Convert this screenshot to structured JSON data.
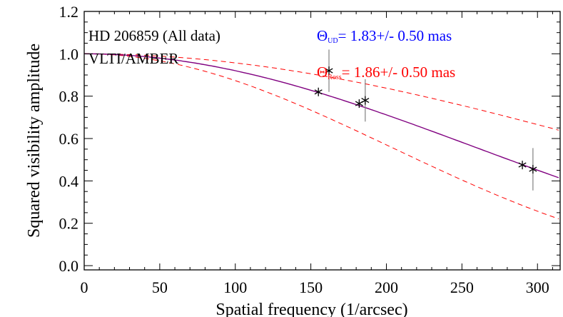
{
  "chart_data": {
    "type": "scatter",
    "title": "",
    "xlabel": "Spatial frequency (1/arcsec)",
    "ylabel": "Squared visibility amplitude",
    "xlim": [
      0,
      315
    ],
    "ylim": [
      -0.02,
      1.2
    ],
    "xticks": [
      0,
      50,
      100,
      150,
      200,
      250,
      300
    ],
    "xtick_labels": [
      "0",
      "50",
      "100",
      "150",
      "200",
      "250",
      "300"
    ],
    "yticks": [
      0.0,
      0.2,
      0.4,
      0.6,
      0.8,
      1.0,
      1.2
    ],
    "ytick_labels": [
      "0.0",
      "0.2",
      "0.4",
      "0.6",
      "0.8",
      "1.0",
      "1.2"
    ],
    "grid": false,
    "annotations": {
      "object": "HD 206859 (All data)",
      "instrument": "VLTI/AMBER",
      "ud_symbol": "Θ",
      "ud_sub": "UD",
      "ud_value": "= 1.83+/- 0.50 mas",
      "ross_symbol": "Θ",
      "ross_sub": "Ross",
      "ross_value": "= 1.86+/- 0.50 mas"
    },
    "colors": {
      "ud": "#0000ff",
      "ross": "#ff0000",
      "model": "#800080",
      "bounds": "#ff0000",
      "points": "#000000",
      "errorbars": "#808080"
    },
    "model": {
      "ud_diameter_mas": 1.83,
      "lower_diameter_mas": 2.33,
      "upper_diameter_mas": 1.33
    },
    "points": [
      {
        "x": 155,
        "y": 0.82,
        "err": 0.0
      },
      {
        "x": 162,
        "y": 0.92,
        "err": 0.1
      },
      {
        "x": 182,
        "y": 0.765,
        "err": 0.0
      },
      {
        "x": 186,
        "y": 0.78,
        "err": 0.1
      },
      {
        "x": 290,
        "y": 0.475,
        "err": 0.0
      },
      {
        "x": 297,
        "y": 0.455,
        "err": 0.1
      }
    ]
  }
}
